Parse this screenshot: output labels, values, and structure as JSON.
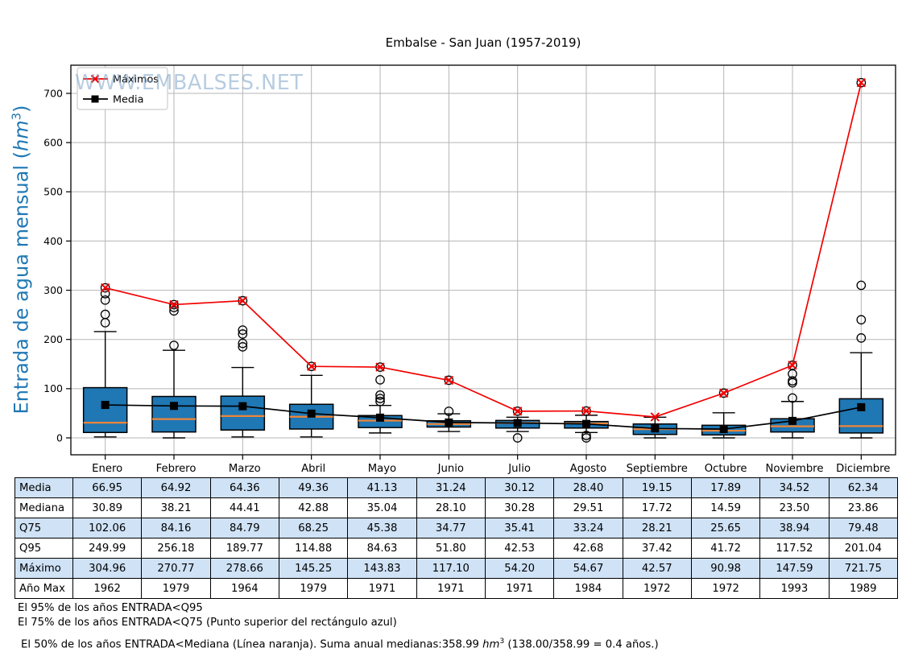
{
  "title": "Embalse - San Juan (1957-2019)",
  "watermark": "WWW.EMBALSES.NET",
  "ylabel": {
    "prefix": "Entrada de agua mensual (",
    "unit": "hm",
    "sup": "3",
    "suffix": ")"
  },
  "legend": {
    "position": "upper-left",
    "items": [
      {
        "label": "Máximos",
        "marker": "x",
        "color": "#f20000"
      },
      {
        "label": "Media",
        "marker": "square",
        "color": "#000000"
      }
    ]
  },
  "chart_data": {
    "type": "boxplot",
    "title": "Embalse - San Juan (1957-2019)",
    "categories": [
      "Enero",
      "Febrero",
      "Marzo",
      "Abril",
      "Mayo",
      "Junio",
      "Julio",
      "Agosto",
      "Septiembre",
      "Octubre",
      "Noviembre",
      "Diciembre"
    ],
    "ylabel": "Entrada de agua mensual (hm3)",
    "ylim": [
      -35,
      757
    ],
    "yticks": [
      0,
      100,
      200,
      300,
      400,
      500,
      600,
      700
    ],
    "grid": true,
    "series": [
      {
        "name": "Máximos",
        "marker": "x",
        "color": "#f20000",
        "values": [
          304.96,
          270.77,
          278.66,
          145.25,
          143.83,
          117.1,
          54.2,
          54.67,
          42.57,
          90.98,
          147.59,
          721.75
        ]
      },
      {
        "name": "Media",
        "marker": "square",
        "color": "#000000",
        "values": [
          66.95,
          64.92,
          64.36,
          49.36,
          41.13,
          31.24,
          30.12,
          28.4,
          19.15,
          17.89,
          34.52,
          62.34
        ]
      }
    ],
    "boxplot": {
      "median": [
        30.89,
        38.21,
        44.41,
        42.88,
        35.04,
        28.1,
        30.28,
        29.51,
        17.72,
        14.59,
        23.5,
        23.86
      ],
      "q75": [
        102.06,
        84.16,
        84.79,
        68.25,
        45.38,
        34.77,
        35.41,
        33.24,
        28.21,
        25.65,
        38.94,
        79.48
      ],
      "q95": [
        249.99,
        256.18,
        189.77,
        114.88,
        84.63,
        51.8,
        42.53,
        42.68,
        37.42,
        41.72,
        117.52,
        201.04
      ],
      "q25_est": [
        11,
        12,
        16,
        18,
        21,
        22,
        20,
        20,
        7,
        6,
        12,
        10
      ],
      "whisker_low_est": [
        2,
        0,
        2,
        2,
        10,
        13,
        13,
        11,
        0,
        0,
        0,
        0
      ],
      "whisker_high_est": [
        216,
        178,
        143,
        127,
        66,
        49,
        42,
        46,
        42,
        51,
        74,
        173
      ],
      "outliers_est": [
        [
          234,
          251,
          280,
          293,
          304.96
        ],
        [
          188,
          258,
          265,
          270.77
        ],
        [
          185,
          192,
          211,
          219,
          278.66
        ],
        [
          145.25
        ],
        [
          74,
          80,
          87,
          118,
          143.83
        ],
        [
          54,
          117.1
        ],
        [
          0,
          54.2
        ],
        [
          0,
          5,
          54.67
        ],
        [],
        [
          90.98
        ],
        [
          81,
          112,
          116,
          130,
          147.59
        ],
        [
          203,
          240,
          310,
          721.75
        ]
      ]
    }
  },
  "table": {
    "corner_label": "",
    "rows": [
      {
        "label": "Media",
        "shaded": true,
        "values": [
          "66.95",
          "64.92",
          "64.36",
          "49.36",
          "41.13",
          "31.24",
          "30.12",
          "28.40",
          "19.15",
          "17.89",
          "34.52",
          "62.34"
        ]
      },
      {
        "label": "Mediana",
        "shaded": false,
        "values": [
          "30.89",
          "38.21",
          "44.41",
          "42.88",
          "35.04",
          "28.10",
          "30.28",
          "29.51",
          "17.72",
          "14.59",
          "23.50",
          "23.86"
        ]
      },
      {
        "label": "Q75",
        "shaded": true,
        "values": [
          "102.06",
          "84.16",
          "84.79",
          "68.25",
          "45.38",
          "34.77",
          "35.41",
          "33.24",
          "28.21",
          "25.65",
          "38.94",
          "79.48"
        ]
      },
      {
        "label": "Q95",
        "shaded": false,
        "values": [
          "249.99",
          "256.18",
          "189.77",
          "114.88",
          "84.63",
          "51.80",
          "42.53",
          "42.68",
          "37.42",
          "41.72",
          "117.52",
          "201.04"
        ]
      },
      {
        "label": "Máximo",
        "shaded": true,
        "values": [
          "304.96",
          "270.77",
          "278.66",
          "145.25",
          "143.83",
          "117.10",
          "54.20",
          "54.67",
          "42.57",
          "90.98",
          "147.59",
          "721.75"
        ]
      },
      {
        "label": "Año Max",
        "shaded": false,
        "values": [
          "1962",
          "1979",
          "1964",
          "1979",
          "1971",
          "1971",
          "1971",
          "1984",
          "1972",
          "1972",
          "1993",
          "1989"
        ]
      }
    ]
  },
  "footnotes": [
    "El 95% de los años ENTRADA<Q95",
    "El 75% de los años ENTRADA<Q75 (Punto superior del rectángulo azul)"
  ],
  "footnote3": {
    "pre": "El 50% de los años ENTRADA<Mediana (Línea naranja). Suma anual medianas:358.99 ",
    "unit": "hm",
    "sup": "3",
    "post": " (138.00/358.99 = 0.4 años.)"
  },
  "colors": {
    "box_fill": "#1f77b4",
    "box_edge": "#000000",
    "median_line": "#ef8536",
    "max_line": "#f20000",
    "mean_line": "#000000",
    "grid": "#b5b5b5",
    "frame": "#000000",
    "watermark": "#7da3c9",
    "ylabel_text": "#1f77b4",
    "table_shade": "#cfe2f6",
    "legend_border": "#cccccc"
  }
}
